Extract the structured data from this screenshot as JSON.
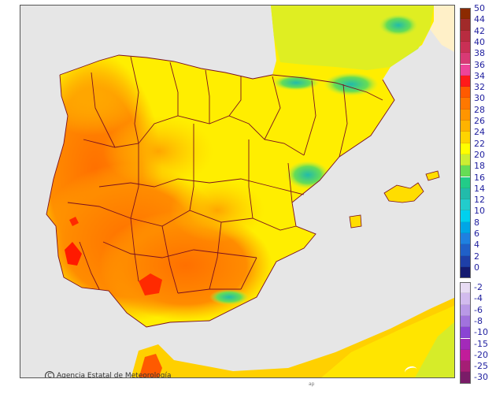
{
  "credit": "Agencia Estatal de Meteorología",
  "brand": "aemet",
  "bottom_mark": "ap",
  "colors": {
    "sea": "#e6e6e6",
    "land_base": "#ffee00",
    "land_warm": "#ffa500",
    "land_hot": "#ff7700",
    "land_hottest": "#ff1a00",
    "cool": "#33cc99",
    "boundary": "#7a1020",
    "africa": "#ffd000"
  },
  "legend": {
    "positive": [
      {
        "label": "50",
        "color": "#8c2a00"
      },
      {
        "label": "44",
        "color": "#a12a2a"
      },
      {
        "label": "42",
        "color": "#b82c40"
      },
      {
        "label": "40",
        "color": "#c93055"
      },
      {
        "label": "38",
        "color": "#d83a75"
      },
      {
        "label": "36",
        "color": "#ee4499"
      },
      {
        "label": "34",
        "color": "#ff1a1a"
      },
      {
        "label": "32",
        "color": "#ff5a00"
      },
      {
        "label": "30",
        "color": "#ff7800"
      },
      {
        "label": "28",
        "color": "#ff9500"
      },
      {
        "label": "26",
        "color": "#ffb300"
      },
      {
        "label": "24",
        "color": "#ffd400"
      },
      {
        "label": "22",
        "color": "#ffff00"
      },
      {
        "label": "20",
        "color": "#ccee33"
      },
      {
        "label": "18",
        "color": "#66dd55"
      },
      {
        "label": "16",
        "color": "#22cc88"
      },
      {
        "label": "14",
        "color": "#22bbaa"
      },
      {
        "label": "12",
        "color": "#22cccc"
      },
      {
        "label": "10",
        "color": "#00d0ee"
      },
      {
        "label": "8",
        "color": "#00a6e6"
      },
      {
        "label": "6",
        "color": "#1f80e0"
      },
      {
        "label": "4",
        "color": "#2060c8"
      },
      {
        "label": "2",
        "color": "#1e3fa8"
      },
      {
        "label": "0",
        "color": "#141a70"
      }
    ],
    "negative": [
      {
        "label": "-2",
        "color": "#e8dcf4"
      },
      {
        "label": "-4",
        "color": "#d2bbee"
      },
      {
        "label": "-6",
        "color": "#b999e6"
      },
      {
        "label": "-8",
        "color": "#a172dd"
      },
      {
        "label": "-10",
        "color": "#8a44d4"
      },
      {
        "label": "-15",
        "color": "#a32ab9"
      },
      {
        "label": "-20",
        "color": "#c21c9a"
      },
      {
        "label": "-25",
        "color": "#a51e75"
      },
      {
        "label": "-30",
        "color": "#7a1c68"
      }
    ]
  }
}
